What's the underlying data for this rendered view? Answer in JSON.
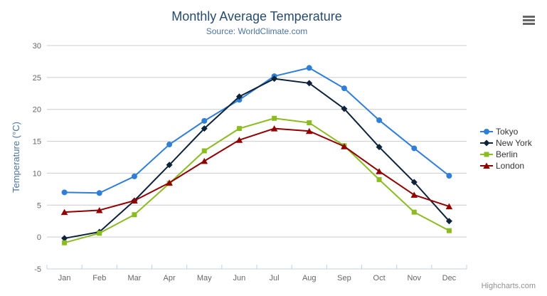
{
  "header": {
    "title": "Monthly Average Temperature",
    "subtitle": "Source: WorldClimate.com"
  },
  "credits": {
    "label": "Highcharts.com"
  },
  "menu": {
    "icon": "hamburger-menu-icon"
  },
  "chart_data": {
    "type": "line",
    "title": "Monthly Average Temperature",
    "subtitle": "Source: WorldClimate.com",
    "categories": [
      "Jan",
      "Feb",
      "Mar",
      "Apr",
      "May",
      "Jun",
      "Jul",
      "Aug",
      "Sep",
      "Oct",
      "Nov",
      "Dec"
    ],
    "series": [
      {
        "name": "Tokyo",
        "color": "#2f7ed8",
        "marker": "circle",
        "values": [
          7.0,
          6.9,
          9.5,
          14.5,
          18.2,
          21.5,
          25.2,
          26.5,
          23.3,
          18.3,
          13.9,
          9.6
        ]
      },
      {
        "name": "New York",
        "color": "#0d233a",
        "marker": "diamond",
        "values": [
          -0.2,
          0.8,
          5.7,
          11.3,
          17.0,
          22.0,
          24.8,
          24.1,
          20.1,
          14.1,
          8.6,
          2.5
        ]
      },
      {
        "name": "Berlin",
        "color": "#8bbc21",
        "marker": "square",
        "values": [
          -0.9,
          0.6,
          3.5,
          8.4,
          13.5,
          17.0,
          18.6,
          17.9,
          14.3,
          9.0,
          3.9,
          1.0
        ]
      },
      {
        "name": "London",
        "color": "#910000",
        "marker": "triangle",
        "values": [
          3.9,
          4.2,
          5.7,
          8.5,
          11.9,
          15.2,
          17.0,
          16.6,
          14.2,
          10.3,
          6.6,
          4.8
        ]
      }
    ],
    "xlabel": "",
    "ylabel": "Temperature (°C)",
    "ylim": [
      -5,
      30
    ],
    "ytick_step": 5,
    "grid": true,
    "legend_position": "right",
    "style": {
      "title_color": "#274b6d",
      "subtitle_color": "#4d759e",
      "ylabel_color": "#4d759e",
      "axis_label_color": "#666666",
      "axis_line_color": "#c0d0e0",
      "grid_color": "#cccccc",
      "legend_text_color": "#333333",
      "menu_icon_color": "#666666",
      "credits_color": "#909090"
    }
  }
}
